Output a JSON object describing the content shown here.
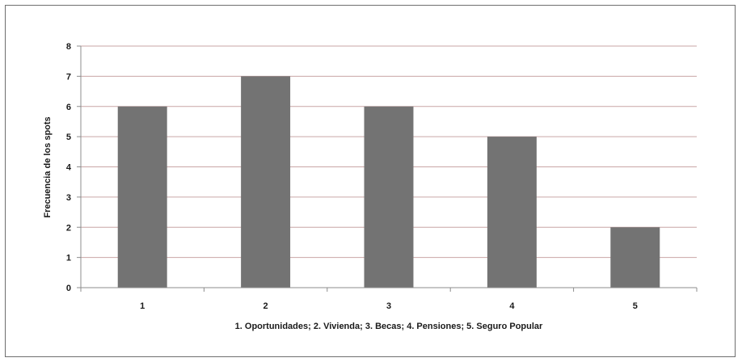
{
  "chart_data": {
    "type": "bar",
    "categories": [
      "1",
      "2",
      "3",
      "4",
      "5"
    ],
    "values": [
      6,
      7,
      6,
      5,
      2
    ],
    "title": "",
    "xlabel": "1. Oportunidades; 2. Vivienda; 3. Becas; 4. Pensiones; 5. Seguro Popular",
    "ylabel": "Frecuencia de los spots",
    "ylim": [
      0,
      8
    ],
    "yticks": [
      "0",
      "1",
      "2",
      "3",
      "4",
      "5",
      "6",
      "7",
      "8"
    ],
    "grid": true,
    "legend": "none",
    "colors": {
      "bar": "#737373",
      "grid": "#c9a6a6",
      "axis": "#8c8c8c"
    }
  }
}
